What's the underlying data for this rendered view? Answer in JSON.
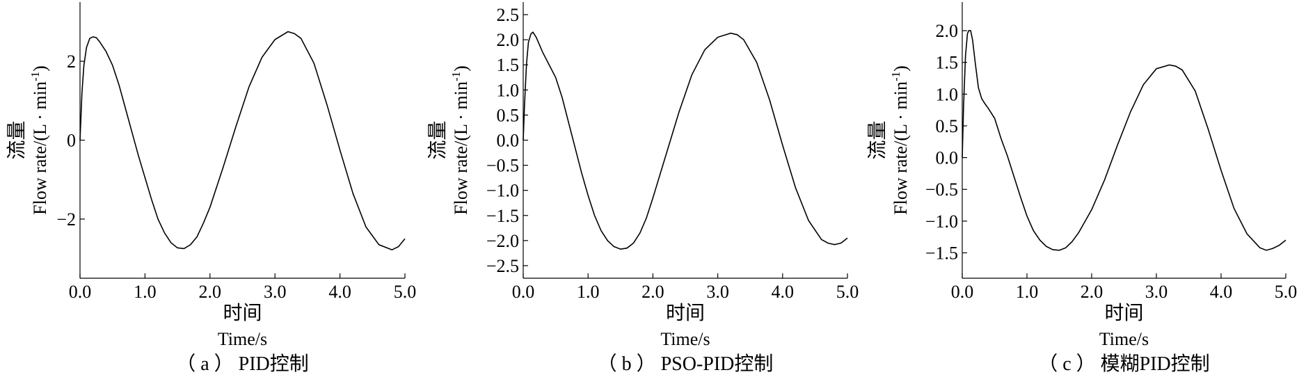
{
  "chart_data": [
    {
      "type": "line",
      "caption": "（ a ） PID控制",
      "xlabel_cn": "时间",
      "xlabel_en": "Time/s",
      "ylabel_cn": "流量",
      "ylabel_en": "Flow rate/(L · min",
      "ylabel_sup": "-1",
      "ylabel_close": ")",
      "xlim": [
        0,
        5
      ],
      "ylim": [
        -3.5,
        3.5
      ],
      "xticks": [
        0,
        1,
        2,
        3,
        4,
        5
      ],
      "xtick_labels": [
        "0.0",
        "1.0",
        "2.0",
        "3.0",
        "4.0",
        "5.0"
      ],
      "yticks": [
        2,
        0,
        -2
      ],
      "ytick_labels": [
        "2",
        "0",
        "−2"
      ],
      "grid": false,
      "series": [
        {
          "x": [
            0,
            0.03,
            0.06,
            0.1,
            0.15,
            0.2,
            0.25,
            0.3,
            0.4,
            0.5,
            0.6,
            0.7,
            0.8,
            0.9,
            1.0,
            1.1,
            1.2,
            1.3,
            1.4,
            1.5,
            1.6,
            1.7,
            1.8,
            1.9,
            2.0,
            2.2,
            2.4,
            2.6,
            2.8,
            3.0,
            3.2,
            3.3,
            3.4,
            3.6,
            3.8,
            4.0,
            4.2,
            4.4,
            4.6,
            4.8,
            4.9,
            5.0
          ],
          "y": [
            0,
            1.2,
            1.9,
            2.35,
            2.58,
            2.62,
            2.6,
            2.5,
            2.25,
            1.9,
            1.4,
            0.8,
            0.2,
            -0.4,
            -0.95,
            -1.5,
            -2.0,
            -2.35,
            -2.6,
            -2.73,
            -2.75,
            -2.65,
            -2.45,
            -2.1,
            -1.7,
            -0.7,
            0.35,
            1.35,
            2.1,
            2.55,
            2.75,
            2.7,
            2.58,
            1.95,
            0.9,
            -0.25,
            -1.35,
            -2.2,
            -2.65,
            -2.78,
            -2.7,
            -2.5
          ]
        }
      ]
    },
    {
      "type": "line",
      "caption": "（ b ） PSO-PID控制",
      "xlabel_cn": "时间",
      "xlabel_en": "Time/s",
      "ylabel_cn": "流量",
      "ylabel_en": "Flow rate/(L · min",
      "ylabel_sup": "-1",
      "ylabel_close": ")",
      "xlim": [
        0,
        5
      ],
      "ylim": [
        -2.75,
        2.75
      ],
      "xticks": [
        0,
        1,
        2,
        3,
        4,
        5
      ],
      "xtick_labels": [
        "0.0",
        "1.0",
        "2.0",
        "3.0",
        "4.0",
        "5.0"
      ],
      "yticks": [
        2.5,
        2.0,
        1.5,
        1.0,
        0.5,
        0,
        -0.5,
        -1.0,
        -1.5,
        -2.0,
        -2.5
      ],
      "ytick_labels": [
        "2.5",
        "2.0",
        "1.5",
        "1.0",
        "0.5",
        "0.0",
        "−0.5",
        "−1.0",
        "−1.5",
        "−2.0",
        "−2.5"
      ],
      "grid": false,
      "series": [
        {
          "x": [
            0,
            0.02,
            0.05,
            0.08,
            0.12,
            0.15,
            0.2,
            0.25,
            0.3,
            0.4,
            0.5,
            0.6,
            0.7,
            0.8,
            0.9,
            1.0,
            1.1,
            1.2,
            1.3,
            1.4,
            1.5,
            1.6,
            1.7,
            1.8,
            1.9,
            2.0,
            2.2,
            2.4,
            2.6,
            2.8,
            3.0,
            3.2,
            3.3,
            3.4,
            3.6,
            3.8,
            4.0,
            4.2,
            4.4,
            4.6,
            4.7,
            4.8,
            4.9,
            5.0
          ],
          "y": [
            0,
            0.7,
            1.5,
            1.95,
            2.12,
            2.15,
            2.05,
            1.9,
            1.75,
            1.5,
            1.25,
            0.85,
            0.35,
            -0.15,
            -0.65,
            -1.1,
            -1.5,
            -1.8,
            -2.0,
            -2.12,
            -2.17,
            -2.15,
            -2.05,
            -1.85,
            -1.55,
            -1.15,
            -0.3,
            0.55,
            1.3,
            1.8,
            2.05,
            2.13,
            2.1,
            2.0,
            1.55,
            0.8,
            -0.1,
            -0.95,
            -1.6,
            -1.98,
            -2.05,
            -2.08,
            -2.05,
            -1.95
          ]
        }
      ]
    },
    {
      "type": "line",
      "caption": "（ c ） 模糊PID控制",
      "xlabel_cn": "时间",
      "xlabel_en": "Time/s",
      "ylabel_cn": "流量",
      "ylabel_en": "Flow rate/(L · min",
      "ylabel_sup": "-1",
      "ylabel_close": ")",
      "xlim": [
        0,
        5
      ],
      "ylim": [
        -1.9,
        2.45
      ],
      "xticks": [
        0,
        1,
        2,
        3,
        4,
        5
      ],
      "xtick_labels": [
        "0.0",
        "1.0",
        "2.0",
        "3.0",
        "4.0",
        "5.0"
      ],
      "yticks": [
        2.0,
        1.5,
        1.0,
        0.5,
        0,
        -0.5,
        -1.0,
        -1.5
      ],
      "ytick_labels": [
        "2.0",
        "1.5",
        "1.0",
        "0.5",
        "0.0",
        "−0.5",
        "−1.0",
        "−1.5"
      ],
      "grid": false,
      "series": [
        {
          "x": [
            0,
            0.02,
            0.05,
            0.08,
            0.1,
            0.13,
            0.16,
            0.2,
            0.25,
            0.3,
            0.35,
            0.4,
            0.5,
            0.6,
            0.7,
            0.8,
            0.9,
            1.0,
            1.1,
            1.2,
            1.3,
            1.4,
            1.5,
            1.6,
            1.7,
            1.8,
            1.9,
            2.0,
            2.2,
            2.4,
            2.6,
            2.8,
            3.0,
            3.2,
            3.3,
            3.4,
            3.6,
            3.8,
            4.0,
            4.2,
            4.4,
            4.6,
            4.7,
            4.8,
            4.9,
            5.0
          ],
          "y": [
            0,
            0.8,
            1.6,
            1.95,
            2.0,
            2.0,
            1.85,
            1.5,
            1.1,
            0.93,
            0.85,
            0.78,
            0.62,
            0.3,
            0.02,
            -0.3,
            -0.62,
            -0.92,
            -1.15,
            -1.3,
            -1.4,
            -1.45,
            -1.46,
            -1.42,
            -1.32,
            -1.18,
            -1.0,
            -0.82,
            -0.35,
            0.2,
            0.72,
            1.15,
            1.4,
            1.46,
            1.44,
            1.38,
            1.05,
            0.45,
            -0.2,
            -0.8,
            -1.2,
            -1.42,
            -1.46,
            -1.43,
            -1.38,
            -1.3
          ]
        }
      ]
    }
  ]
}
